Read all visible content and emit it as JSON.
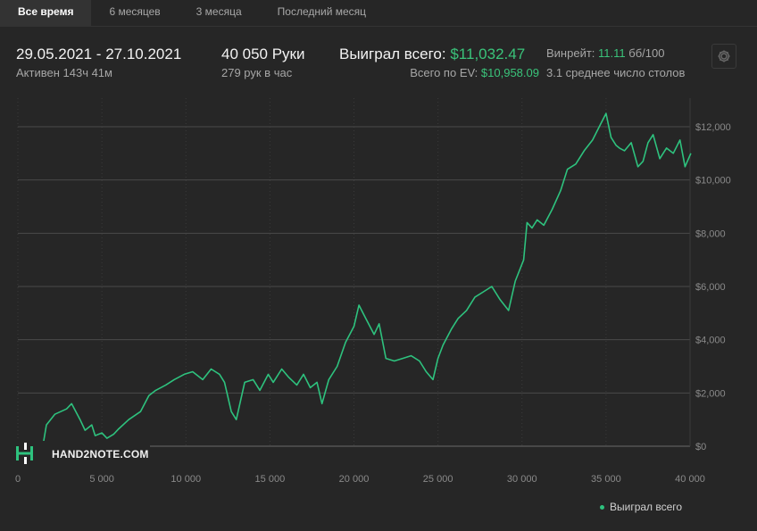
{
  "tabs": [
    {
      "label": "Все время",
      "active": true
    },
    {
      "label": "6 месяцев",
      "active": false
    },
    {
      "label": "3 месяца",
      "active": false
    },
    {
      "label": "Последний месяц",
      "active": false
    }
  ],
  "stats": {
    "date_range": "29.05.2021 - 27.10.2021",
    "active_time": "Активен 143ч 41м",
    "hands": "40 050 Руки",
    "hands_per_hour": "279 рук в час",
    "won_label": "Выиграл всего:",
    "won_value": "$11,032.47",
    "ev_label": "Всего по EV:",
    "ev_value": "$10,958.09",
    "winrate_label": "Винрейт:",
    "winrate_value": "11.11",
    "winrate_unit": "бб/100",
    "avg_tables": "3.1 среднее число столов"
  },
  "logo": {
    "text": "HAND2NOTE.COM"
  },
  "colors": {
    "line": "#2ec27e",
    "accent": "#3ac37a",
    "background": "#262626",
    "grid": "#4a4a4a"
  },
  "chart_data": {
    "type": "line",
    "title": "",
    "xlabel": "",
    "ylabel": "",
    "xlim": [
      0,
      40000
    ],
    "ylim": [
      0,
      13000
    ],
    "x_ticks": [
      0,
      5000,
      10000,
      15000,
      20000,
      25000,
      30000,
      35000,
      40000
    ],
    "x_tick_labels": [
      "0",
      "5 000",
      "10 000",
      "15 000",
      "20 000",
      "25 000",
      "30 000",
      "35 000",
      "40 000"
    ],
    "y_ticks": [
      0,
      2000,
      4000,
      6000,
      8000,
      10000,
      12000
    ],
    "y_tick_labels": [
      "$0",
      "$2,000",
      "$4,000",
      "$6,000",
      "$8,000",
      "$10,000",
      "$12,000"
    ],
    "grid": true,
    "legend_position": "bottom-right",
    "series": [
      {
        "name": "Выиграл всего",
        "x": [
          0,
          600,
          1300,
          1500,
          1700,
          2200,
          2900,
          3200,
          3700,
          4000,
          4400,
          4600,
          5000,
          5300,
          5700,
          6000,
          6600,
          7300,
          7800,
          8200,
          8800,
          9300,
          9900,
          10400,
          11000,
          11500,
          12000,
          12300,
          12700,
          13000,
          13500,
          14000,
          14400,
          14900,
          15200,
          15700,
          16100,
          16600,
          17000,
          17400,
          17800,
          18100,
          18500,
          19000,
          19500,
          20000,
          20300,
          20700,
          21200,
          21500,
          21900,
          22400,
          22900,
          23400,
          23900,
          24300,
          24700,
          25000,
          25300,
          25800,
          26200,
          26700,
          27200,
          27700,
          28200,
          28700,
          29200,
          29600,
          30100,
          30300,
          30600,
          30900,
          31300,
          31800,
          32300,
          32700,
          33200,
          33700,
          34200,
          34600,
          35000,
          35300,
          35600,
          35800,
          36100,
          36500,
          36900,
          37200,
          37500,
          37800,
          38200,
          38600,
          39000,
          39400,
          39700,
          40050
        ],
        "values": [
          0,
          -100,
          -150,
          50,
          800,
          1200,
          1400,
          1600,
          1000,
          600,
          800,
          400,
          500,
          300,
          450,
          650,
          1000,
          1300,
          1900,
          2100,
          2300,
          2500,
          2700,
          2800,
          2500,
          2900,
          2700,
          2400,
          1300,
          1000,
          2400,
          2500,
          2100,
          2700,
          2400,
          2900,
          2600,
          2300,
          2700,
          2200,
          2400,
          1600,
          2500,
          3000,
          3900,
          4500,
          5300,
          4800,
          4200,
          4600,
          3300,
          3200,
          3300,
          3400,
          3200,
          2800,
          2500,
          3300,
          3800,
          4400,
          4800,
          5100,
          5600,
          5800,
          6000,
          5500,
          5100,
          6200,
          7000,
          8400,
          8200,
          8500,
          8300,
          8900,
          9600,
          10400,
          10600,
          11100,
          11500,
          12000,
          12500,
          11600,
          11300,
          11200,
          11100,
          11400,
          10500,
          10700,
          11400,
          11700,
          10800,
          11200,
          11000,
          11500,
          10500,
          11000
        ]
      }
    ]
  }
}
